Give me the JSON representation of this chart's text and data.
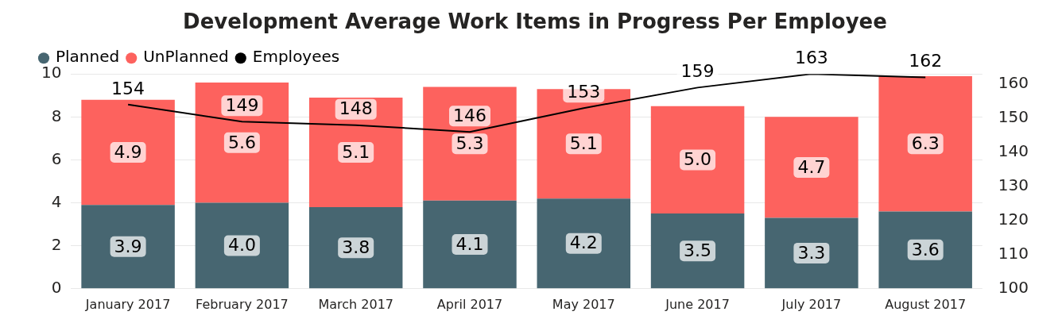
{
  "chart_data": {
    "type": "bar",
    "title": "Development Average Work Items in Progress Per Employee",
    "categories": [
      "January 2017",
      "February 2017",
      "March 2017",
      "April 2017",
      "May 2017",
      "June 2017",
      "July 2017",
      "August 2017"
    ],
    "series": [
      {
        "name": "Planned",
        "color": "#476671",
        "values": [
          3.9,
          4.0,
          3.8,
          4.1,
          4.2,
          3.5,
          3.3,
          3.6
        ],
        "value_labels": [
          "3.9",
          "4.0",
          "3.8",
          "4.1",
          "4.2",
          "3.5",
          "3.3",
          "3.6"
        ]
      },
      {
        "name": "UnPlanned",
        "color": "#fd625e",
        "values": [
          4.9,
          5.6,
          5.1,
          5.3,
          5.1,
          5.0,
          4.7,
          6.3
        ],
        "value_labels": [
          "4.9",
          "5.6",
          "5.1",
          "5.3",
          "5.1",
          "5.0",
          "4.7",
          "6.3"
        ]
      },
      {
        "name": "Employees",
        "type": "line",
        "axis": "y2",
        "color": "#000000",
        "values": [
          154,
          149,
          148,
          146,
          153,
          159,
          163,
          162
        ],
        "value_labels": [
          "154",
          "149",
          "148",
          "146",
          "153",
          "159",
          "163",
          "162"
        ]
      }
    ],
    "stacked": true,
    "legend": "top left",
    "grid": "y",
    "marker": "none",
    "line_style": "solid",
    "ylim": [
      0,
      10
    ],
    "yticks": [
      0,
      2,
      4,
      6,
      8,
      10
    ],
    "y2lim": [
      100,
      163
    ],
    "y2ticks": [
      100,
      110,
      120,
      130,
      140,
      150,
      160
    ]
  }
}
